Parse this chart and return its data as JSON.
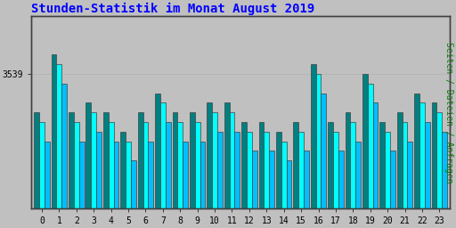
{
  "title": "Stunden-Statistik im Monat August 2019",
  "ylabel_right": "Seiten / Dateien / Anfragen",
  "ytick_label": "3539",
  "ytick_value": 3539,
  "categories": [
    0,
    1,
    2,
    3,
    4,
    5,
    6,
    7,
    8,
    9,
    10,
    11,
    12,
    13,
    14,
    15,
    16,
    17,
    18,
    19,
    20,
    21,
    22,
    23
  ],
  "bar1_values": [
    3535,
    3541,
    3535,
    3536,
    3535,
    3533,
    3535,
    3537,
    3535,
    3535,
    3536,
    3536,
    3534,
    3534,
    3533,
    3534,
    3540,
    3534,
    3535,
    3539,
    3534,
    3535,
    3537,
    3536
  ],
  "bar2_values": [
    3534,
    3540,
    3534,
    3535,
    3534,
    3532,
    3534,
    3536,
    3534,
    3534,
    3535,
    3535,
    3533,
    3533,
    3532,
    3533,
    3539,
    3533,
    3534,
    3538,
    3533,
    3534,
    3536,
    3535
  ],
  "bar3_values": [
    3532,
    3538,
    3532,
    3533,
    3532,
    3530,
    3532,
    3534,
    3532,
    3532,
    3533,
    3533,
    3531,
    3531,
    3530,
    3531,
    3537,
    3531,
    3532,
    3536,
    3531,
    3532,
    3534,
    3533
  ],
  "bar1_color": "#008080",
  "bar2_color": "#00FFFF",
  "bar3_color": "#00BFFF",
  "background_color": "#C0C0C0",
  "plot_bg_color": "#C0C0C0",
  "title_color": "#0000FF",
  "ylabel_right_color": "#008000",
  "tick_color": "#000000",
  "border_color": "#404040",
  "grid_color": "#B0B0B0",
  "title_fontsize": 10,
  "ylabel_fontsize": 7,
  "tick_fontsize": 7,
  "ymin": 3525,
  "ymax": 3545,
  "bar_width": 0.3
}
